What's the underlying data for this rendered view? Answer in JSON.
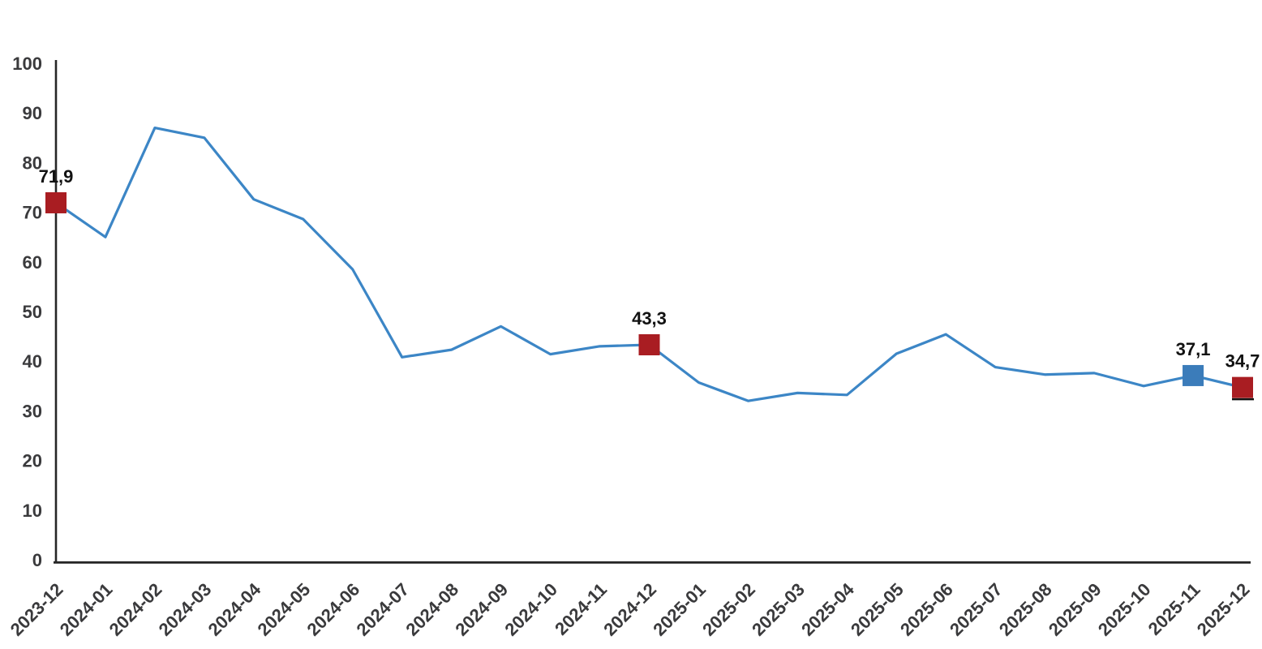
{
  "chart_data": {
    "type": "line",
    "title": "",
    "xlabel": "",
    "ylabel": "",
    "x": [
      "2023-12",
      "2024-01",
      "2024-02",
      "2024-03",
      "2024-04",
      "2024-05",
      "2024-06",
      "2024-07",
      "2024-08",
      "2024-09",
      "2024-10",
      "2024-11",
      "2024-12",
      "2025-01",
      "2025-02",
      "2025-03",
      "2025-04",
      "2025-05",
      "2025-06",
      "2025-07",
      "2025-08",
      "2025-09",
      "2025-10",
      "2025-11",
      "2025-12"
    ],
    "values": [
      71.9,
      65.0,
      87.0,
      85.0,
      72.6,
      68.6,
      58.5,
      40.8,
      42.3,
      47.0,
      41.4,
      43.0,
      43.3,
      35.7,
      32.0,
      33.6,
      33.2,
      41.5,
      45.4,
      38.8,
      37.3,
      37.6,
      35.0,
      37.1,
      34.7
    ],
    "ylim": [
      0,
      100
    ],
    "yticks": [
      0,
      10,
      20,
      30,
      40,
      50,
      60,
      70,
      80,
      90,
      100
    ],
    "grid": false,
    "legend": "none",
    "decimal_separator": ",",
    "colors": {
      "series_line": "#3c86c6",
      "marker_red": "#a91d22",
      "marker_blue": "#3b7cba",
      "axis": "#262626",
      "tick_label": "#3a3a3c",
      "data_label": "#121212"
    },
    "highlights": [
      {
        "x": "2023-12",
        "value": 71.9,
        "label": "71,9",
        "color_key": "marker_red",
        "bottom_edge": false
      },
      {
        "x": "2024-12",
        "value": 43.3,
        "label": "43,3",
        "color_key": "marker_red",
        "bottom_edge": false
      },
      {
        "x": "2025-11",
        "value": 37.1,
        "label": "37,1",
        "color_key": "marker_blue",
        "bottom_edge": false
      },
      {
        "x": "2025-12",
        "value": 34.7,
        "label": "34,7",
        "color_key": "marker_red",
        "bottom_edge": true
      }
    ]
  }
}
